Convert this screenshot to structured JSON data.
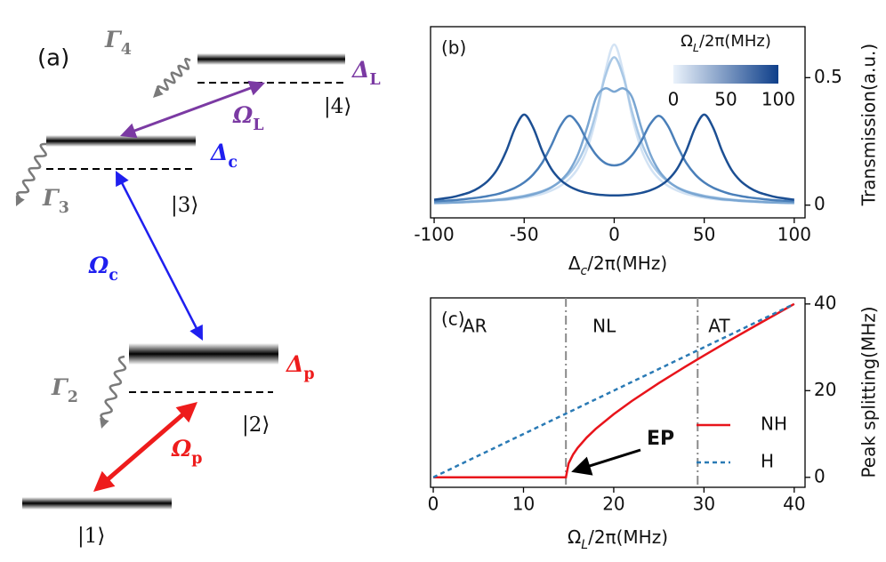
{
  "diagram": {
    "panel_label": "(a)",
    "states": [
      "|1⟩",
      "|2⟩",
      "|3⟩",
      "|4⟩"
    ],
    "decays": [
      {
        "symbol": "Γ",
        "sub": "2"
      },
      {
        "symbol": "Γ",
        "sub": "3"
      },
      {
        "symbol": "Γ",
        "sub": "4"
      }
    ],
    "decay_color": "#7a7a7a",
    "detunings": [
      {
        "symbol": "Δ",
        "sub": "p",
        "color": "#ee1c1c"
      },
      {
        "symbol": "Δ",
        "sub": "c",
        "color": "#1f1fef"
      },
      {
        "symbol": "Δ",
        "sub": "L",
        "color": "#7b3aa3"
      }
    ],
    "couplings": [
      {
        "symbol": "Ω",
        "sub": "p",
        "color": "#ee1c1c"
      },
      {
        "symbol": "Ω",
        "sub": "c",
        "color": "#1f1fef"
      },
      {
        "symbol": "Ω",
        "sub": "L",
        "color": "#7b3aa3"
      }
    ]
  },
  "chart_data": [
    {
      "type": "line",
      "panel_label": "(b)",
      "xlabel": {
        "base": "Δ",
        "sub": "c",
        "rest": "/2π(MHz)"
      },
      "ylabel": "Transmission(a.u.)",
      "x": [
        -100,
        -95,
        -90,
        -85,
        -80,
        -75,
        -70,
        -65,
        -60,
        -55,
        -50,
        -45,
        -40,
        -35,
        -30,
        -25,
        -20,
        -15,
        -10,
        -5,
        0,
        5,
        10,
        15,
        20,
        25,
        30,
        35,
        40,
        45,
        50,
        55,
        60,
        65,
        70,
        75,
        80,
        85,
        90,
        95,
        100
      ],
      "series": [
        {
          "color": "#d3e3f4",
          "values": [
            0.008,
            0.008,
            0.009,
            0.01,
            0.012,
            0.013,
            0.015,
            0.018,
            0.02,
            0.024,
            0.029,
            0.036,
            0.044,
            0.057,
            0.075,
            0.102,
            0.146,
            0.22,
            0.345,
            0.522,
            0.63,
            0.522,
            0.345,
            0.22,
            0.146,
            0.102,
            0.075,
            0.057,
            0.044,
            0.036,
            0.029,
            0.024,
            0.02,
            0.018,
            0.015,
            0.013,
            0.012,
            0.01,
            0.009,
            0.008,
            0.008
          ]
        },
        {
          "color": "#a9c8e6",
          "values": [
            0.01,
            0.011,
            0.012,
            0.013,
            0.015,
            0.017,
            0.019,
            0.022,
            0.026,
            0.031,
            0.037,
            0.045,
            0.055,
            0.07,
            0.092,
            0.123,
            0.172,
            0.249,
            0.364,
            0.505,
            0.58,
            0.505,
            0.364,
            0.249,
            0.172,
            0.123,
            0.092,
            0.07,
            0.055,
            0.045,
            0.037,
            0.031,
            0.026,
            0.022,
            0.019,
            0.017,
            0.015,
            0.013,
            0.012,
            0.011,
            0.01
          ]
        },
        {
          "color": "#7aa6d2",
          "values": [
            0.008,
            0.009,
            0.01,
            0.011,
            0.013,
            0.015,
            0.017,
            0.02,
            0.023,
            0.028,
            0.034,
            0.042,
            0.053,
            0.069,
            0.094,
            0.134,
            0.201,
            0.305,
            0.422,
            0.458,
            0.445,
            0.458,
            0.422,
            0.305,
            0.201,
            0.134,
            0.094,
            0.069,
            0.053,
            0.042,
            0.034,
            0.028,
            0.023,
            0.02,
            0.017,
            0.015,
            0.013,
            0.011,
            0.01,
            0.009,
            0.008
          ]
        },
        {
          "color": "#4a7fb9",
          "values": [
            0.015,
            0.017,
            0.019,
            0.022,
            0.026,
            0.03,
            0.036,
            0.043,
            0.054,
            0.068,
            0.089,
            0.12,
            0.166,
            0.233,
            0.309,
            0.35,
            0.318,
            0.251,
            0.197,
            0.165,
            0.156,
            0.165,
            0.197,
            0.251,
            0.318,
            0.35,
            0.309,
            0.233,
            0.166,
            0.12,
            0.089,
            0.068,
            0.054,
            0.043,
            0.036,
            0.03,
            0.026,
            0.022,
            0.019,
            0.017,
            0.015
          ]
        },
        {
          "color": "#1c4f93",
          "values": [
            0.021,
            0.026,
            0.031,
            0.04,
            0.051,
            0.069,
            0.096,
            0.14,
            0.211,
            0.303,
            0.355,
            0.304,
            0.213,
            0.143,
            0.1,
            0.074,
            0.058,
            0.048,
            0.042,
            0.039,
            0.038,
            0.039,
            0.042,
            0.048,
            0.058,
            0.074,
            0.1,
            0.143,
            0.213,
            0.304,
            0.355,
            0.303,
            0.211,
            0.14,
            0.096,
            0.069,
            0.051,
            0.04,
            0.031,
            0.026,
            0.021
          ]
        }
      ],
      "xlim": [
        -102,
        106
      ],
      "ylim": [
        -0.05,
        0.7
      ],
      "xticks": [
        -100,
        -50,
        0,
        50,
        100
      ],
      "yticks": [
        0,
        0.5
      ],
      "yaxis_side": "right",
      "colorbar": {
        "label": {
          "base": "Ω",
          "sub": "L",
          "rest": "/2π(MHz)"
        },
        "lim": [
          0,
          100
        ],
        "ticks": [
          0,
          50,
          100
        ],
        "colors": [
          "#eaf2fb",
          "#0e3f8a"
        ]
      }
    },
    {
      "type": "line",
      "panel_label": "(c)",
      "xlabel": {
        "base": "Ω",
        "sub": "L",
        "rest": "/2π(MHz)"
      },
      "ylabel": "Peak splitting(MHz)",
      "series": [
        {
          "name": "NH",
          "color": "#e8141b",
          "style": "solid",
          "x": [
            0,
            5,
            10,
            14.7,
            15,
            15.5,
            16,
            17,
            18,
            20,
            22,
            25,
            28,
            30,
            33,
            36,
            40
          ],
          "values": [
            0,
            0,
            0,
            0,
            3.2,
            5.29,
            6.79,
            9.18,
            11.17,
            14.58,
            17.6,
            21.74,
            25.62,
            28.11,
            31.77,
            35.32,
            40
          ]
        },
        {
          "name": "H",
          "color": "#2a7ab5",
          "style": "dashed",
          "x": [
            0,
            40
          ],
          "values": [
            0,
            40
          ]
        }
      ],
      "xlim": [
        -0.3,
        41.2
      ],
      "ylim": [
        -2.3,
        41.4
      ],
      "xticks": [
        0,
        10,
        20,
        30,
        40
      ],
      "yticks": [
        0,
        20,
        40
      ],
      "yaxis_side": "right",
      "legend": "lower right",
      "vlines": [
        14.7,
        29.3
      ],
      "regions": [
        "AR",
        "NL",
        "AT"
      ],
      "annotation": {
        "text": "EP",
        "color": "#e8141b",
        "xy": [
          14.7,
          0
        ]
      }
    }
  ]
}
